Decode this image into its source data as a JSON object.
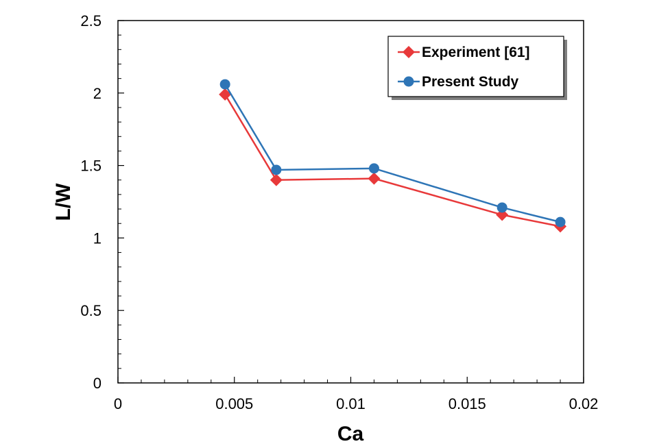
{
  "chart_data": {
    "type": "line",
    "xlabel": "Ca",
    "ylabel": "L/W",
    "xlim": [
      0,
      0.02
    ],
    "ylim": [
      0,
      2.5
    ],
    "x_ticks": [
      0,
      0.005,
      0.01,
      0.015,
      0.02
    ],
    "x_tick_labels": [
      "0",
      "0.005",
      "0.01",
      "0.015",
      "0.02"
    ],
    "y_ticks": [
      0,
      0.5,
      1,
      1.5,
      2,
      2.5
    ],
    "y_tick_labels": [
      "0",
      "0.5",
      "1",
      "1.5",
      "2",
      "2.5"
    ],
    "grid": false,
    "legend_position": "top-right",
    "series": [
      {
        "name": "Experiment [61]",
        "marker": "diamond",
        "color": "#e8393a",
        "x": [
          0.0046,
          0.0068,
          0.011,
          0.0165,
          0.019
        ],
        "y": [
          1.99,
          1.4,
          1.41,
          1.16,
          1.08
        ]
      },
      {
        "name": "Present Study",
        "marker": "circle",
        "color": "#2e75b6",
        "x": [
          0.0046,
          0.0068,
          0.011,
          0.0165,
          0.019
        ],
        "y": [
          2.06,
          1.47,
          1.48,
          1.21,
          1.11
        ]
      }
    ]
  }
}
